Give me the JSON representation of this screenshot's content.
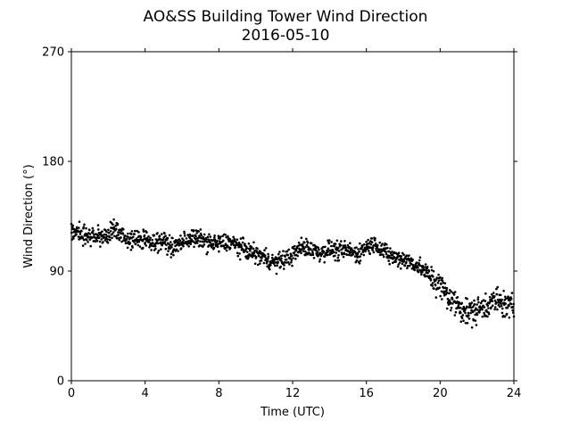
{
  "chart_data": {
    "type": "scatter",
    "title": "AO&SS Building Tower Wind Direction",
    "subtitle": "2016-05-10",
    "xlabel": "Time (UTC)",
    "ylabel": "Wind Direction (°)",
    "xlim": [
      0,
      24
    ],
    "ylim": [
      0,
      270
    ],
    "xticks": [
      0,
      4,
      8,
      12,
      16,
      20,
      24
    ],
    "yticks": [
      0,
      90,
      180,
      270
    ],
    "grid": false,
    "legend": "none",
    "marker_color": "#000000",
    "series": [
      {
        "x": [
          0.0,
          0.5,
          1.0,
          1.5,
          2.0,
          2.5,
          3.0,
          3.5,
          4.0,
          4.5,
          5.0,
          5.5,
          6.0,
          6.5,
          7.0,
          7.5,
          8.0,
          8.5,
          9.0,
          9.5,
          10.0,
          10.5,
          11.0,
          11.5,
          12.0,
          12.5,
          13.0,
          13.5,
          14.0,
          14.5,
          15.0,
          15.5,
          16.0,
          16.5,
          17.0,
          17.5,
          18.0,
          18.5,
          19.0,
          19.5,
          20.0,
          20.5,
          21.0,
          21.5,
          22.0,
          22.5,
          23.0,
          23.5,
          24.0
        ],
        "y": [
          122,
          122,
          118,
          118,
          120,
          124,
          116,
          116,
          116,
          114,
          115,
          109,
          114,
          117,
          116,
          113,
          112,
          114,
          111,
          107,
          104,
          101,
          97,
          99,
          103,
          110,
          108,
          105,
          108,
          106,
          107,
          104,
          110,
          113,
          105,
          101,
          100,
          97,
          92,
          85,
          78,
          68,
          62,
          56,
          58,
          62,
          66,
          62,
          60
        ]
      }
    ]
  }
}
